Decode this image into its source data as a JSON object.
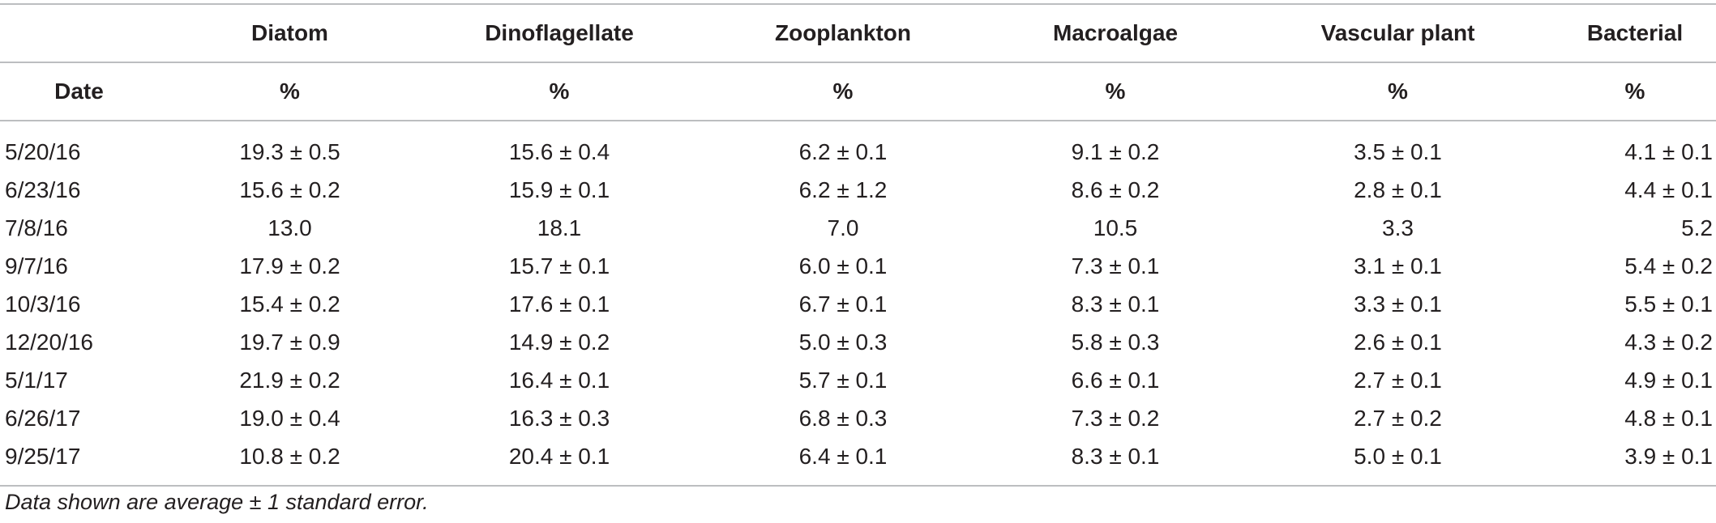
{
  "table": {
    "columns": [
      "Diatom",
      "Dinoflagellate",
      "Zooplankton",
      "Macroalgae",
      "Vascular plant",
      "Bacterial"
    ],
    "date_header": "Date",
    "unit": "%",
    "rows": [
      {
        "date": "5/20/16",
        "values": [
          "19.3 ± 0.5",
          "15.6 ± 0.4",
          "6.2 ± 0.1",
          "9.1 ± 0.2",
          "3.5 ± 0.1",
          "4.1 ± 0.1"
        ]
      },
      {
        "date": "6/23/16",
        "values": [
          "15.6 ± 0.2",
          "15.9 ± 0.1",
          "6.2 ± 1.2",
          "8.6 ± 0.2",
          "2.8 ± 0.1",
          "4.4 ± 0.1"
        ]
      },
      {
        "date": "7/8/16",
        "values": [
          "13.0",
          "18.1",
          "7.0",
          "10.5",
          "3.3",
          "5.2"
        ]
      },
      {
        "date": "9/7/16",
        "values": [
          "17.9 ± 0.2",
          "15.7 ± 0.1",
          "6.0 ± 0.1",
          "7.3 ± 0.1",
          "3.1 ± 0.1",
          "5.4 ± 0.2"
        ]
      },
      {
        "date": "10/3/16",
        "values": [
          "15.4 ± 0.2",
          "17.6 ± 0.1",
          "6.7 ± 0.1",
          "8.3 ± 0.1",
          "3.3 ± 0.1",
          "5.5 ± 0.1"
        ]
      },
      {
        "date": "12/20/16",
        "values": [
          "19.7 ± 0.9",
          "14.9 ± 0.2",
          "5.0 ± 0.3",
          "5.8 ± 0.3",
          "2.6 ± 0.1",
          "4.3 ± 0.2"
        ]
      },
      {
        "date": "5/1/17",
        "values": [
          "21.9 ± 0.2",
          "16.4 ± 0.1",
          "5.7 ± 0.1",
          "6.6 ± 0.1",
          "2.7 ± 0.1",
          "4.9 ± 0.1"
        ]
      },
      {
        "date": "6/26/17",
        "values": [
          "19.0 ± 0.4",
          "16.3 ± 0.3",
          "6.8 ± 0.3",
          "7.3 ± 0.2",
          "2.7 ± 0.2",
          "4.8 ± 0.1"
        ]
      },
      {
        "date": "9/25/17",
        "values": [
          "10.8 ± 0.2",
          "20.4 ± 0.1",
          "6.4 ± 0.1",
          "8.3 ± 0.1",
          "5.0 ± 0.1",
          "3.9 ± 0.1"
        ]
      }
    ]
  },
  "footnote": "Data shown are average ± 1 standard error."
}
